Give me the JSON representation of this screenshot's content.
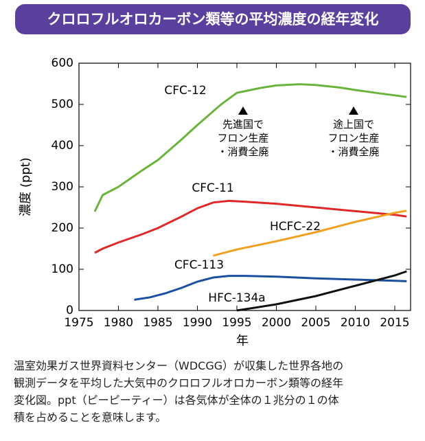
{
  "chart_data": {
    "type": "line",
    "title": "クロロフルオロカーボン類等の平均濃度の経年変化",
    "x_label": "年",
    "y_label": "濃度 (ppt)",
    "xlim": [
      1975,
      2017
    ],
    "xticks": [
      1975,
      1980,
      1985,
      1990,
      1995,
      2000,
      2005,
      2010,
      2015
    ],
    "ylim": [
      0,
      600
    ],
    "yticks": [
      0,
      100,
      200,
      300,
      400,
      500,
      600
    ],
    "series": [
      {
        "name": "CFC-12",
        "color": "#6ab43e",
        "x": [
          1977,
          1978,
          1980,
          1983,
          1985,
          1988,
          1990,
          1993,
          1995,
          1998,
          2000,
          2003,
          2005,
          2008,
          2010,
          2013,
          2015,
          2016.5
        ],
        "values": [
          240,
          280,
          300,
          340,
          365,
          415,
          450,
          500,
          528,
          540,
          546,
          549,
          547,
          541,
          535,
          527,
          522,
          518
        ]
      },
      {
        "name": "CFC-11",
        "color": "#e02828",
        "x": [
          1977,
          1978,
          1980,
          1983,
          1985,
          1988,
          1990,
          1992,
          1994,
          1996,
          2000,
          2005,
          2010,
          2015,
          2016.5
        ],
        "values": [
          140,
          150,
          165,
          185,
          200,
          228,
          248,
          262,
          266,
          264,
          259,
          250,
          241,
          232,
          228
        ]
      },
      {
        "name": "HCFC-22",
        "color": "#f0a020",
        "x": [
          1992,
          1995,
          2000,
          2005,
          2010,
          2015,
          2016.5
        ],
        "values": [
          133,
          148,
          168,
          190,
          215,
          237,
          242
        ]
      },
      {
        "name": "CFC-113",
        "color": "#1a4fa0",
        "x": [
          1982,
          1984,
          1986,
          1988,
          1990,
          1992,
          1994,
          1996,
          2000,
          2005,
          2010,
          2015,
          2016.5
        ],
        "values": [
          26,
          32,
          42,
          55,
          70,
          80,
          84,
          84,
          82,
          78,
          75,
          72,
          71
        ]
      },
      {
        "name": "HFC-134a",
        "color": "#111111",
        "x": [
          1995,
          2000,
          2005,
          2010,
          2015,
          2016.5
        ],
        "values": [
          0,
          15,
          35,
          60,
          85,
          95
        ]
      }
    ],
    "annotations": [
      {
        "lines": [
          "先進国で",
          "フロン生産",
          "・消費全廃"
        ]
      },
      {
        "lines": [
          "途上国で",
          "フロン生産",
          "・消費全廃"
        ]
      }
    ],
    "caption": [
      "温室効果ガス世界資料センター（WDCGG）が収集した世界各地の",
      "観測データを平均した大気中のクロロフルオロカーボン類等の経年",
      "変化図。ppt（ピーピーティー）は各気体が全体の１兆分の１の体",
      "積を占めることを意味します。"
    ]
  }
}
